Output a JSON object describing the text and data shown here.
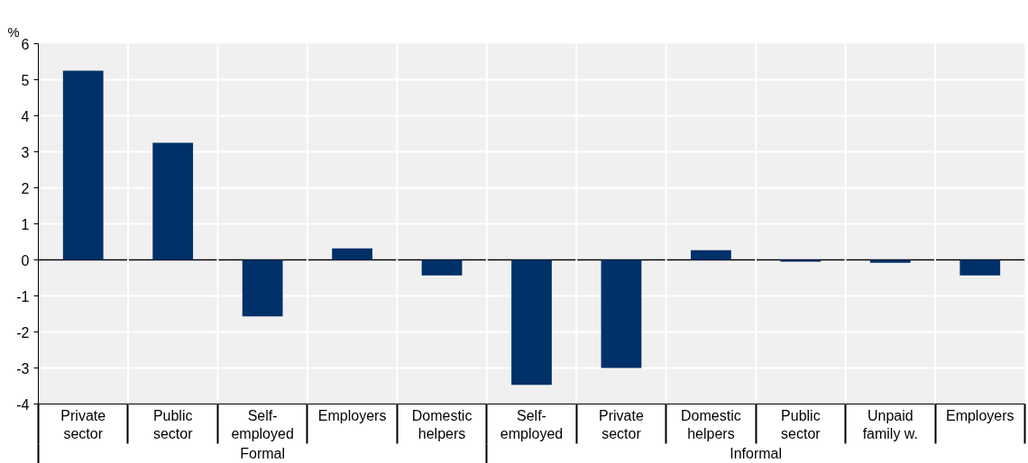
{
  "chart_data": {
    "type": "bar",
    "ylabel": "%",
    "categories": [
      "Private sector",
      "Public sector",
      "Self-employed",
      "Employers",
      "Domestic helpers",
      "Self-employed",
      "Private sector",
      "Domestic helpers",
      "Public sector",
      "Unpaid family w.",
      "Employers"
    ],
    "values": [
      5.25,
      3.25,
      -1.57,
      0.32,
      -0.43,
      -3.47,
      -3.0,
      0.27,
      -0.05,
      -0.08,
      -0.43
    ],
    "color": "#003069",
    "annotations": [
      "Formal",
      "Informal"
    ],
    "ylim": [
      -4,
      6
    ],
    "yticks": [
      -4,
      -3,
      -2,
      -1,
      0,
      1,
      2,
      3,
      4,
      5,
      6
    ],
    "grid": "y"
  }
}
